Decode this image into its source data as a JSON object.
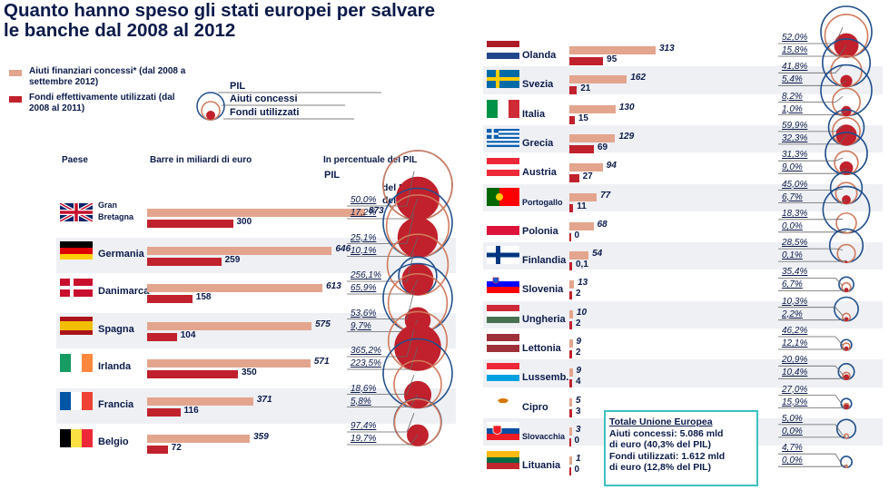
{
  "title": "Quanto hanno speso gli stati europei per salvare le banche dal 2008 al 2012",
  "legend": {
    "aiuti_label": "Aiuti finanziari concessi* (dal 2008 a settembre 2012)",
    "fondi_label": "Fondi effettivamente utilizzati (dal 2008 al 2011)",
    "circle_pil": "PIL",
    "circle_aiuti": "Aiuti concessi",
    "circle_fondi": "Fondi utilizzati",
    "color_aiuti": "#e3a58d",
    "color_fondi": "#c0212c"
  },
  "columns": {
    "paese": "Paese",
    "barre": "Barre in miliardi di euro",
    "percentuale": "In percentuale del PIL"
  },
  "sample": {
    "pil": "PIL",
    "aiuti_suffix": "del PIL",
    "fondi_suffix": "del PIL"
  },
  "total": {
    "heading": "Totale Unione Europea",
    "line1": "Aiuti concessi: 5.086 mld",
    "line2": "di euro (40,3% del PIL)",
    "line3": "Fondi utilizzati: 1.612 mld",
    "line4": "di euro (12,8% del PIL)"
  },
  "chart_data": {
    "type": "bar",
    "title": "Quanto hanno speso gli stati europei per salvare le banche dal 2008 al 2012",
    "xlabel": "Barre in miliardi di euro",
    "ylabel": "Paese",
    "series_names": [
      "Aiuti finanziari concessi",
      "Fondi effettivamente utilizzati"
    ],
    "countries": [
      {
        "name": "Gran Bretagna",
        "flag": "uk",
        "aiuti": "873",
        "fondi": "300",
        "aiuti_pct": "50,0%",
        "fondi_pct": "17,2%",
        "a": 873,
        "f": 300,
        "ap": 50.0,
        "fp": 17.2
      },
      {
        "name": "Germania",
        "flag": "de",
        "aiuti": "646",
        "fondi": "259",
        "aiuti_pct": "25,1%",
        "fondi_pct": "10,1%",
        "a": 646,
        "f": 259,
        "ap": 25.1,
        "fp": 10.1
      },
      {
        "name": "Danimarca",
        "flag": "dk",
        "aiuti": "613",
        "fondi": "158",
        "aiuti_pct": "256,1%",
        "fondi_pct": "65,9%",
        "a": 613,
        "f": 158,
        "ap": 256.1,
        "fp": 65.9
      },
      {
        "name": "Spagna",
        "flag": "es",
        "aiuti": "575",
        "fondi": "104",
        "aiuti_pct": "53,6%",
        "fondi_pct": "9,7%",
        "a": 575,
        "f": 104,
        "ap": 53.6,
        "fp": 9.7
      },
      {
        "name": "Irlanda",
        "flag": "ie",
        "aiuti": "571",
        "fondi": "350",
        "aiuti_pct": "365,2%",
        "fondi_pct": "223,5%",
        "a": 571,
        "f": 350,
        "ap": 365.2,
        "fp": 223.5
      },
      {
        "name": "Francia",
        "flag": "fr",
        "aiuti": "371",
        "fondi": "116",
        "aiuti_pct": "18,6%",
        "fondi_pct": "5,8%",
        "a": 371,
        "f": 116,
        "ap": 18.6,
        "fp": 5.8
      },
      {
        "name": "Belgio",
        "flag": "be",
        "aiuti": "359",
        "fondi": "72",
        "aiuti_pct": "97,4%",
        "fondi_pct": "19,7%",
        "a": 359,
        "f": 72,
        "ap": 97.4,
        "fp": 19.7
      },
      {
        "name": "Olanda",
        "flag": "nl",
        "aiuti": "313",
        "fondi": "95",
        "aiuti_pct": "52,0%",
        "fondi_pct": "15,8%",
        "a": 313,
        "f": 95,
        "ap": 52.0,
        "fp": 15.8
      },
      {
        "name": "Svezia",
        "flag": "se",
        "aiuti": "162",
        "fondi": "21",
        "aiuti_pct": "41,8%",
        "fondi_pct": "5,4%",
        "a": 162,
        "f": 21,
        "ap": 41.8,
        "fp": 5.4
      },
      {
        "name": "Italia",
        "flag": "it",
        "aiuti": "130",
        "fondi": "15",
        "aiuti_pct": "8,2%",
        "fondi_pct": "1,0%",
        "a": 130,
        "f": 15,
        "ap": 8.2,
        "fp": 1.0
      },
      {
        "name": "Grecia",
        "flag": "gr",
        "aiuti": "129",
        "fondi": "69",
        "aiuti_pct": "59,9%",
        "fondi_pct": "32,3%",
        "a": 129,
        "f": 69,
        "ap": 59.9,
        "fp": 32.3
      },
      {
        "name": "Austria",
        "flag": "at",
        "aiuti": "94",
        "fondi": "27",
        "aiuti_pct": "31,3%",
        "fondi_pct": "9,0%",
        "a": 94,
        "f": 27,
        "ap": 31.3,
        "fp": 9.0
      },
      {
        "name": "Portogallo",
        "flag": "pt",
        "aiuti": "77",
        "fondi": "11",
        "aiuti_pct": "45,0%",
        "fondi_pct": "6,7%",
        "a": 77,
        "f": 11,
        "ap": 45.0,
        "fp": 6.7
      },
      {
        "name": "Polonia",
        "flag": "pl",
        "aiuti": "68",
        "fondi": "0",
        "aiuti_pct": "18,3%",
        "fondi_pct": "0,0%",
        "a": 68,
        "f": 0,
        "ap": 18.3,
        "fp": 0.0
      },
      {
        "name": "Finlandia",
        "flag": "fi",
        "aiuti": "54",
        "fondi": "0,1",
        "aiuti_pct": "28,5%",
        "fondi_pct": "0,1%",
        "a": 54,
        "f": 0.1,
        "ap": 28.5,
        "fp": 0.1
      },
      {
        "name": "Slovenia",
        "flag": "si",
        "aiuti": "13",
        "fondi": "2",
        "aiuti_pct": "35,4%",
        "fondi_pct": "6,7%",
        "a": 13,
        "f": 2,
        "ap": 35.4,
        "fp": 6.7
      },
      {
        "name": "Ungheria",
        "flag": "hu",
        "aiuti": "10",
        "fondi": "2",
        "aiuti_pct": "10,3%",
        "fondi_pct": "2,2%",
        "a": 10,
        "f": 2,
        "ap": 10.3,
        "fp": 2.2
      },
      {
        "name": "Lettonia",
        "flag": "lv",
        "aiuti": "9",
        "fondi": "2",
        "aiuti_pct": "46,2%",
        "fondi_pct": "12,1%",
        "a": 9,
        "f": 2,
        "ap": 46.2,
        "fp": 12.1
      },
      {
        "name": "Lussemb.",
        "flag": "lu",
        "aiuti": "9",
        "fondi": "4",
        "aiuti_pct": "20,9%",
        "fondi_pct": "10,4%",
        "a": 9,
        "f": 4,
        "ap": 20.9,
        "fp": 10.4
      },
      {
        "name": "Cipro",
        "flag": "cy",
        "aiuti": "5",
        "fondi": "3",
        "aiuti_pct": "27,0%",
        "fondi_pct": "15,9%",
        "a": 5,
        "f": 3,
        "ap": 27.0,
        "fp": 15.9
      },
      {
        "name": "Slovacchia",
        "flag": "sk",
        "aiuti": "3",
        "fondi": "0",
        "aiuti_pct": "5,0%",
        "fondi_pct": "0,0%",
        "a": 3,
        "f": 0,
        "ap": 5.0,
        "fp": 0.0
      },
      {
        "name": "Lituania",
        "flag": "lt",
        "aiuti": "1",
        "fondi": "0",
        "aiuti_pct": "4,7%",
        "fondi_pct": "0,0%",
        "a": 1,
        "f": 0,
        "ap": 4.7,
        "fp": 0.0
      }
    ]
  }
}
